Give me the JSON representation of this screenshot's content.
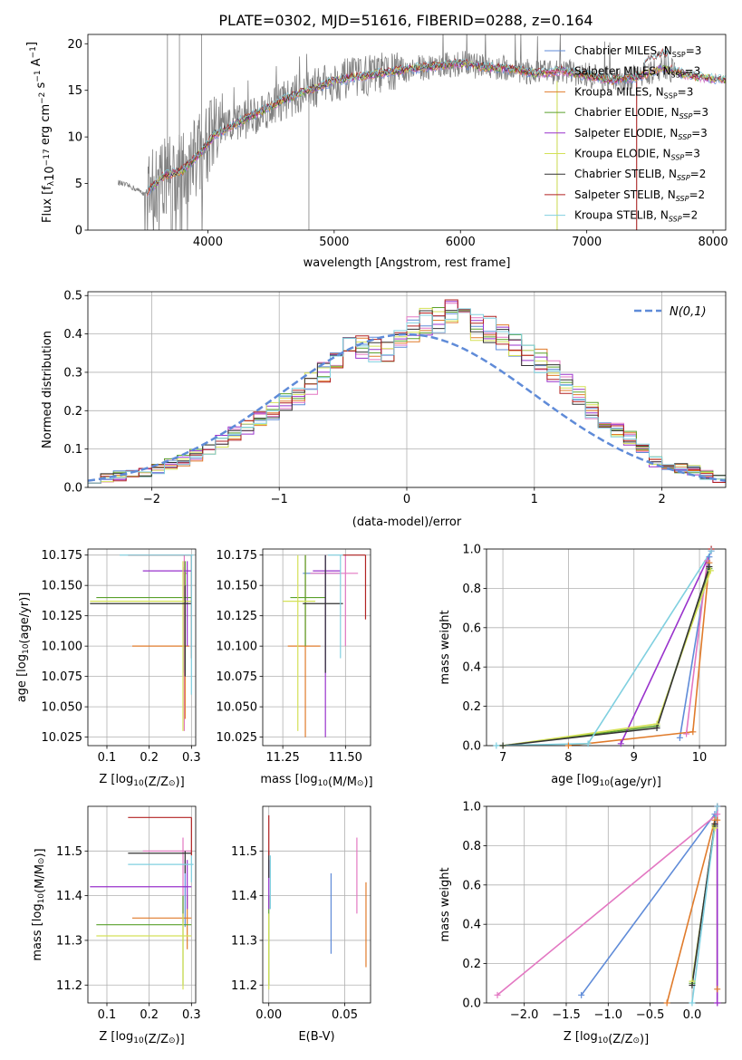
{
  "title": "PLATE=0302, MJD=51616, FIBERID=0288, z=0.164",
  "colors": {
    "Chabrier MILES": "#5f8bd8",
    "Salpeter MILES": "#e377c2",
    "Kroupa MILES": "#e07b2b",
    "Chabrier ELODIE": "#5aa02c",
    "Salpeter ELODIE": "#9932cc",
    "Kroupa ELODIE": "#d4e157",
    "Chabrier STELIB": "#333333",
    "Salpeter STELIB": "#b22222",
    "Kroupa STELIB": "#80d0e0",
    "data": "#808080",
    "normal": "#5f8bd8"
  },
  "chart_data": [
    {
      "id": "spectrum",
      "type": "line",
      "xlabel": "wavelength [Angstrom, rest frame]",
      "ylabel": "Flux [f_λ10^-17 erg cm^-2 s^-1 A^-1]",
      "xlim": [
        3050,
        8100
      ],
      "ylim": [
        0,
        21
      ],
      "xticks": [
        4000,
        5000,
        6000,
        7000,
        8000
      ],
      "yticks": [
        0,
        5,
        10,
        15,
        20
      ],
      "grid": false,
      "legend_position": "right",
      "legend": [
        {
          "name": "Chabrier MILES",
          "sub": "SSP",
          "n": "3",
          "style": "sup"
        },
        {
          "name": "Salpeter MILES",
          "sub": "SSP",
          "n": "3",
          "style": "sup"
        },
        {
          "name": "Kroupa MILES",
          "sub": "SSP",
          "n": "3",
          "style": "sup"
        },
        {
          "name": "Chabrier ELODIE",
          "sub": "SSP",
          "n": "3",
          "style": "sub"
        },
        {
          "name": "Salpeter ELODIE",
          "sub": "SSP",
          "n": "3",
          "style": "sub"
        },
        {
          "name": "Kroupa ELODIE",
          "sub": "SSP",
          "n": "3",
          "style": "sub"
        },
        {
          "name": "Chabrier STELIB",
          "sub": "SSP",
          "n": "2",
          "style": "sub"
        },
        {
          "name": "Salpeter STELIB",
          "sub": "SSP",
          "n": "2",
          "style": "sub"
        },
        {
          "name": "Kroupa STELIB",
          "sub": "SSP",
          "n": "2",
          "style": "sub"
        }
      ],
      "model_continuum": {
        "x": [
          3250,
          3400,
          3500,
          3650,
          3800,
          3950,
          4050,
          4200,
          4400,
          4600,
          4800,
          5000,
          5200,
          5400,
          5600,
          5800,
          6000,
          6200,
          6400,
          6600,
          6800,
          7000,
          7200,
          7400,
          7600,
          7800,
          8000
        ],
        "y": [
          5.3,
          4.6,
          3.9,
          5.8,
          6.4,
          8.4,
          10.2,
          11.3,
          12.6,
          14.0,
          15.0,
          16.0,
          16.5,
          16.9,
          17.3,
          17.6,
          17.9,
          17.5,
          17.3,
          16.8,
          17.1,
          16.6,
          16.1,
          16.4,
          17.5,
          16.6,
          16.2
        ]
      }
    },
    {
      "id": "residuals",
      "type": "histogram",
      "xlabel": "(data-model)/error",
      "ylabel": "Normed distribution",
      "xlim": [
        -2.5,
        2.5
      ],
      "ylim": [
        0,
        0.51
      ],
      "xticks": [
        -2,
        -1,
        0,
        1,
        2
      ],
      "yticks": [
        0.0,
        0.1,
        0.2,
        0.3,
        0.4,
        0.5
      ],
      "grid": true,
      "legend_position": "top-right",
      "normal_label": "N(0,1)",
      "bins": 50,
      "hist_center": [
        0.024,
        0.024,
        0.03,
        0.035,
        0.04,
        0.05,
        0.06,
        0.07,
        0.085,
        0.1,
        0.12,
        0.14,
        0.16,
        0.18,
        0.2,
        0.22,
        0.24,
        0.27,
        0.3,
        0.33,
        0.36,
        0.37,
        0.36,
        0.35,
        0.38,
        0.41,
        0.43,
        0.44,
        0.45,
        0.43,
        0.42,
        0.41,
        0.39,
        0.37,
        0.35,
        0.33,
        0.3,
        0.27,
        0.24,
        0.2,
        0.17,
        0.15,
        0.13,
        0.1,
        0.07,
        0.06,
        0.05,
        0.045,
        0.035,
        0.025
      ]
    },
    {
      "id": "age_vs_Z",
      "type": "errorbar",
      "xlabel": "Z [log10(Z/Z⊙)]",
      "ylabel": "age  [log10(age/yr)]",
      "xlim": [
        0.055,
        0.31
      ],
      "ylim": [
        10.018,
        10.18
      ],
      "xticks": [
        0.1,
        0.2,
        0.3
      ],
      "yticks": [
        10.025,
        10.05,
        10.075,
        10.1,
        10.125,
        10.15,
        10.175
      ],
      "grid": true,
      "points": [
        {
          "series": "Chabrier MILES",
          "x": 0.283,
          "y": 10.16,
          "xerr": [
            0.283,
            0.29
          ],
          "yerr": [
            10.078,
            10.165
          ]
        },
        {
          "series": "Salpeter MILES",
          "x": 0.283,
          "y": 10.16,
          "xerr": [
            0.28,
            0.29
          ],
          "yerr": [
            10.03,
            10.175
          ]
        },
        {
          "series": "Kroupa MILES",
          "x": 0.285,
          "y": 10.1,
          "xerr": [
            0.16,
            0.295
          ],
          "yerr": [
            10.04,
            10.16
          ]
        },
        {
          "series": "Chabrier ELODIE",
          "x": 0.285,
          "y": 10.14,
          "xerr": [
            0.075,
            0.3
          ],
          "yerr": [
            10.08,
            10.17
          ]
        },
        {
          "series": "Salpeter ELODIE",
          "x": 0.29,
          "y": 10.162,
          "xerr": [
            0.185,
            0.3
          ],
          "yerr": [
            10.1,
            10.17
          ]
        },
        {
          "series": "Kroupa ELODIE",
          "x": 0.28,
          "y": 10.137,
          "xerr": [
            0.06,
            0.3
          ],
          "yerr": [
            10.03,
            10.17
          ]
        },
        {
          "series": "Chabrier STELIB",
          "x": 0.285,
          "y": 10.135,
          "xerr": [
            0.06,
            0.3
          ],
          "yerr": [
            10.075,
            10.15
          ]
        },
        {
          "series": "Salpeter STELIB",
          "x": 0.3,
          "y": 10.175,
          "xerr": [
            0.15,
            0.3
          ],
          "yerr": [
            10.09,
            10.175
          ]
        },
        {
          "series": "Kroupa STELIB",
          "x": 0.3,
          "y": 10.175,
          "xerr": [
            0.13,
            0.305
          ],
          "yerr": [
            10.06,
            10.175
          ]
        }
      ]
    },
    {
      "id": "age_vs_mass",
      "type": "errorbar",
      "xlabel": "mass [log10(M/M⊙)]",
      "ylabel": "",
      "xlim": [
        11.17,
        11.6
      ],
      "ylim": [
        10.018,
        10.18
      ],
      "xticks": [
        11.25,
        11.5
      ],
      "yticks": [
        10.025,
        10.05,
        10.075,
        10.1,
        10.125,
        10.15,
        10.175
      ],
      "grid": true,
      "points": [
        {
          "series": "Chabrier MILES",
          "x": 11.42,
          "y": 10.16,
          "xerr": [
            11.33,
            11.48
          ],
          "yerr": [
            10.078,
            10.175
          ]
        },
        {
          "series": "Salpeter MILES",
          "x": 11.5,
          "y": 10.16,
          "xerr": [
            11.36,
            11.55
          ],
          "yerr": [
            10.1,
            10.175
          ]
        },
        {
          "series": "Kroupa MILES",
          "x": 11.34,
          "y": 10.1,
          "xerr": [
            11.27,
            11.4
          ],
          "yerr": [
            10.025,
            10.175
          ]
        },
        {
          "series": "Chabrier ELODIE",
          "x": 11.34,
          "y": 10.14,
          "xerr": [
            11.28,
            11.42
          ],
          "yerr": [
            10.1,
            10.175
          ]
        },
        {
          "series": "Salpeter ELODIE",
          "x": 11.42,
          "y": 10.162,
          "xerr": [
            11.37,
            11.48
          ],
          "yerr": [
            10.025,
            10.175
          ]
        },
        {
          "series": "Kroupa ELODIE",
          "x": 11.31,
          "y": 10.137,
          "xerr": [
            11.25,
            11.38
          ],
          "yerr": [
            10.03,
            10.175
          ]
        },
        {
          "series": "Chabrier STELIB",
          "x": 11.42,
          "y": 10.135,
          "xerr": [
            11.33,
            11.49
          ],
          "yerr": [
            10.078,
            10.175
          ]
        },
        {
          "series": "Salpeter STELIB",
          "x": 11.58,
          "y": 10.175,
          "xerr": [
            11.49,
            11.58
          ],
          "yerr": [
            10.122,
            10.175
          ]
        },
        {
          "series": "Kroupa STELIB",
          "x": 11.48,
          "y": 10.175,
          "xerr": [
            11.43,
            11.49
          ],
          "yerr": [
            10.09,
            10.175
          ]
        }
      ]
    },
    {
      "id": "weight_vs_age",
      "type": "line",
      "xlabel": "age  [log10(age/yr)]",
      "ylabel": "mass weight",
      "xlim": [
        6.75,
        10.4
      ],
      "ylim": [
        0,
        1.0
      ],
      "xticks": [
        7,
        8,
        9,
        10
      ],
      "yticks": [
        0.0,
        0.2,
        0.4,
        0.6,
        0.8,
        1.0
      ],
      "grid": true,
      "series": [
        {
          "name": "Chabrier MILES",
          "x": [
            9.7,
            10.15
          ],
          "y": [
            0.04,
            0.96
          ]
        },
        {
          "name": "Salpeter MILES",
          "x": [
            9.8,
            10.12
          ],
          "y": [
            0.06,
            0.94
          ]
        },
        {
          "name": "Kroupa MILES",
          "x": [
            8.0,
            9.9,
            10.15
          ],
          "y": [
            0.0,
            0.07,
            0.93
          ]
        },
        {
          "name": "Chabrier ELODIE",
          "x": [
            7.0,
            9.35,
            10.15
          ],
          "y": [
            0.0,
            0.1,
            0.9
          ]
        },
        {
          "name": "Salpeter ELODIE",
          "x": [
            8.8,
            10.18
          ],
          "y": [
            0.01,
            0.99
          ]
        },
        {
          "name": "Kroupa ELODIE",
          "x": [
            7.0,
            9.35,
            10.17
          ],
          "y": [
            0.0,
            0.11,
            0.89
          ]
        },
        {
          "name": "Chabrier STELIB",
          "x": [
            7.0,
            9.35,
            10.15
          ],
          "y": [
            0.0,
            0.09,
            0.91
          ]
        },
        {
          "name": "Salpeter STELIB",
          "x": [
            10.18
          ],
          "y": [
            1.0
          ]
        },
        {
          "name": "Kroupa STELIB",
          "x": [
            6.9,
            8.3,
            10.18
          ],
          "y": [
            0.0,
            0.01,
            0.99
          ]
        }
      ]
    },
    {
      "id": "mass_vs_Z",
      "type": "errorbar",
      "xlabel": "Z [log10(Z/Z⊙)]",
      "ylabel": "mass [log10(M/M⊙)]",
      "xlim": [
        0.055,
        0.31
      ],
      "ylim": [
        11.16,
        11.6
      ],
      "xticks": [
        0.1,
        0.2,
        0.3
      ],
      "yticks": [
        11.2,
        11.3,
        11.4,
        11.5
      ],
      "grid": true,
      "points": [
        {
          "series": "Chabrier MILES",
          "x": 0.285,
          "y": 11.42,
          "xerr": [
            0.28,
            0.29
          ],
          "yerr": [
            11.33,
            11.48
          ]
        },
        {
          "series": "Salpeter MILES",
          "x": 0.28,
          "y": 11.5,
          "xerr": [
            0.185,
            0.3
          ],
          "yerr": [
            11.34,
            11.53
          ]
        },
        {
          "series": "Kroupa MILES",
          "x": 0.29,
          "y": 11.35,
          "xerr": [
            0.16,
            0.3
          ],
          "yerr": [
            11.28,
            11.4
          ]
        },
        {
          "series": "Chabrier ELODIE",
          "x": 0.28,
          "y": 11.335,
          "xerr": [
            0.075,
            0.3
          ],
          "yerr": [
            11.2,
            11.4
          ]
        },
        {
          "series": "Salpeter ELODIE",
          "x": 0.29,
          "y": 11.42,
          "xerr": [
            0.06,
            0.3
          ],
          "yerr": [
            11.37,
            11.48
          ]
        },
        {
          "series": "Kroupa ELODIE",
          "x": 0.28,
          "y": 11.31,
          "xerr": [
            0.075,
            0.3
          ],
          "yerr": [
            11.19,
            11.36
          ]
        },
        {
          "series": "Chabrier STELIB",
          "x": 0.285,
          "y": 11.495,
          "xerr": [
            0.15,
            0.3
          ],
          "yerr": [
            11.45,
            11.5
          ]
        },
        {
          "series": "Salpeter STELIB",
          "x": 0.3,
          "y": 11.575,
          "xerr": [
            0.15,
            0.3
          ],
          "yerr": [
            11.49,
            11.575
          ]
        },
        {
          "series": "Kroupa STELIB",
          "x": 0.3,
          "y": 11.47,
          "xerr": [
            0.15,
            0.305
          ],
          "yerr": [
            11.43,
            11.49
          ]
        }
      ]
    },
    {
      "id": "mass_vs_ebv",
      "type": "errorbar",
      "xlabel": "E(B-V)",
      "ylabel": "",
      "xlim": [
        -0.004,
        0.067
      ],
      "ylim": [
        11.16,
        11.6
      ],
      "xticks": [
        0.0,
        0.05
      ],
      "yticks": [
        11.2,
        11.3,
        11.4,
        11.5
      ],
      "grid": true,
      "points": [
        {
          "series": "Chabrier MILES",
          "x": 0.041,
          "y": 11.36,
          "yerr": [
            11.27,
            11.45
          ]
        },
        {
          "series": "Salpeter MILES",
          "x": 0.058,
          "y": 11.45,
          "yerr": [
            11.36,
            11.53
          ]
        },
        {
          "series": "Kroupa MILES",
          "x": 0.064,
          "y": 11.34,
          "yerr": [
            11.24,
            11.43
          ]
        },
        {
          "series": "Chabrier ELODIE",
          "x": 0.0,
          "y": 11.33,
          "yerr": [
            11.2,
            11.4
          ]
        },
        {
          "series": "Salpeter ELODIE",
          "x": 0.0,
          "y": 11.42,
          "yerr": [
            11.37,
            11.48
          ]
        },
        {
          "series": "Kroupa ELODIE",
          "x": 0.0,
          "y": 11.28,
          "yerr": [
            11.19,
            11.36
          ]
        },
        {
          "series": "Chabrier STELIB",
          "x": 0.0,
          "y": 11.49,
          "yerr": [
            11.44,
            11.5
          ]
        },
        {
          "series": "Salpeter STELIB",
          "x": 0.0,
          "y": 11.53,
          "yerr": [
            11.49,
            11.58
          ]
        },
        {
          "series": "Kroupa STELIB",
          "x": 0.001,
          "y": 11.44,
          "yerr": [
            11.37,
            11.49
          ]
        }
      ]
    },
    {
      "id": "weight_vs_Z",
      "type": "line",
      "xlabel": "Z [log10(Z/Z⊙)]",
      "ylabel": "mass weight",
      "xlim": [
        -2.45,
        0.4
      ],
      "ylim": [
        0,
        1.0
      ],
      "xticks": [
        -2.0,
        -1.5,
        -1.0,
        -0.5,
        0.0
      ],
      "yticks": [
        0.0,
        0.2,
        0.4,
        0.6,
        0.8,
        1.0
      ],
      "grid": true,
      "series": [
        {
          "name": "Chabrier MILES",
          "x": [
            -1.32,
            0.27
          ],
          "y": [
            0.04,
            0.96
          ]
        },
        {
          "name": "Salpeter MILES",
          "x": [
            -2.32,
            0.3,
            0.3
          ],
          "y": [
            0.04,
            0.96,
            0.0
          ]
        },
        {
          "name": "Kroupa MILES",
          "x": [
            -0.3,
            0.27,
            0.3,
            0.3
          ],
          "y": [
            0.0,
            0.93,
            0.93,
            0.07
          ]
        },
        {
          "name": "Chabrier ELODIE",
          "x": [
            0.0,
            0.27
          ],
          "y": [
            0.1,
            0.9
          ]
        },
        {
          "name": "Salpeter ELODIE",
          "x": [
            0.3,
            0.3
          ],
          "y": [
            0.0,
            1.0
          ]
        },
        {
          "name": "Kroupa ELODIE",
          "x": [
            0.0,
            0.27
          ],
          "y": [
            0.11,
            0.89
          ]
        },
        {
          "name": "Chabrier STELIB",
          "x": [
            0.0,
            0.27
          ],
          "y": [
            0.09,
            0.91
          ]
        },
        {
          "name": "Salpeter STELIB",
          "x": [
            0.3
          ],
          "y": [
            1.0
          ]
        },
        {
          "name": "Kroupa STELIB",
          "x": [
            0.0,
            0.3
          ],
          "y": [
            0.0,
            1.0
          ]
        }
      ]
    }
  ]
}
